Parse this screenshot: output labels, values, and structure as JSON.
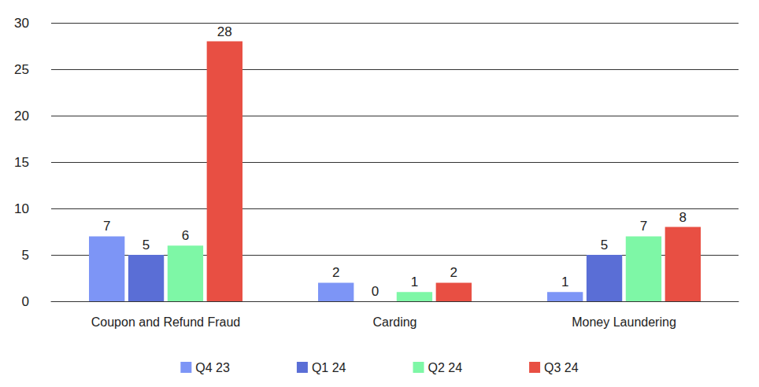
{
  "chart_data": {
    "type": "bar",
    "categories": [
      "Coupon and Refund Fraud",
      "Carding",
      "Money Laundering"
    ],
    "series": [
      {
        "name": "Q4 23",
        "color": "#7d95f6",
        "values": [
          7,
          2,
          1
        ]
      },
      {
        "name": "Q1 24",
        "color": "#5a6ed6",
        "values": [
          5,
          0,
          5
        ]
      },
      {
        "name": "Q2 24",
        "color": "#7ef7a6",
        "values": [
          6,
          1,
          7
        ]
      },
      {
        "name": "Q3 24",
        "color": "#e84f43",
        "values": [
          28,
          2,
          8
        ]
      }
    ],
    "ylim": [
      0,
      30
    ],
    "yticks": [
      0,
      5,
      10,
      15,
      20,
      25,
      30
    ],
    "grid": true,
    "legend": "bottom",
    "data_labels": true
  }
}
